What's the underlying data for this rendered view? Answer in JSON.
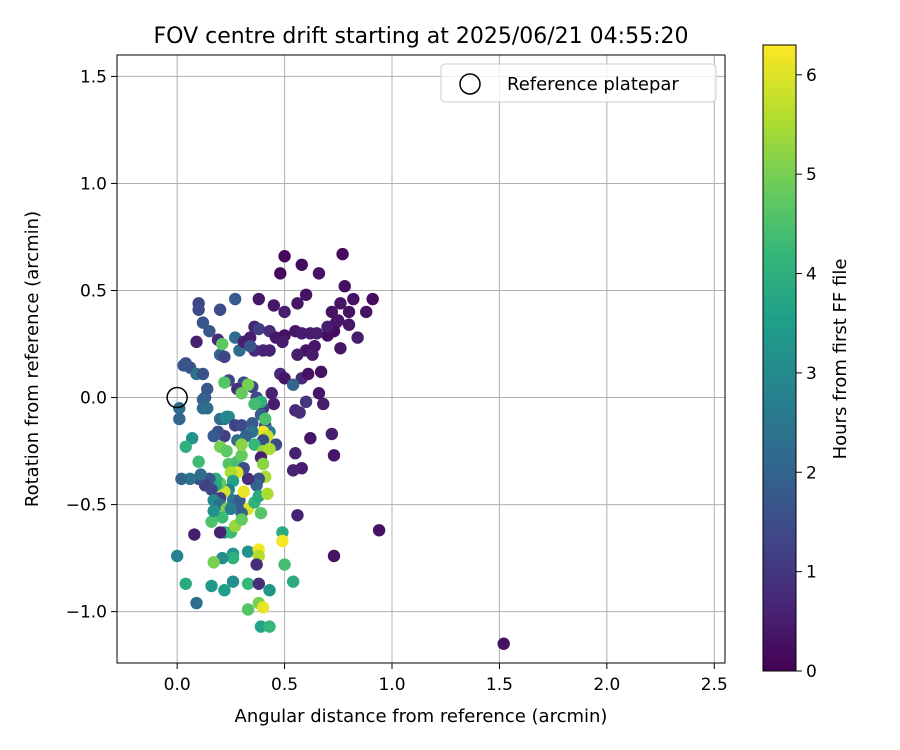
{
  "chart_data": {
    "type": "scatter",
    "title": "FOV centre drift starting at 2025/06/21 04:55:20",
    "xlabel": "Angular distance from reference (arcmin)",
    "ylabel": "Rotation from reference (arcmin)",
    "xlim": [
      -0.28,
      2.55
    ],
    "ylim": [
      -1.24,
      1.6
    ],
    "xticks": [
      0.0,
      0.5,
      1.0,
      1.5,
      2.0,
      2.5
    ],
    "xtick_labels": [
      "0.0",
      "0.5",
      "1.0",
      "1.5",
      "2.0",
      "2.5"
    ],
    "yticks": [
      -1.0,
      -0.5,
      0.0,
      0.5,
      1.0,
      1.5
    ],
    "ytick_labels": [
      "−1.0",
      "−0.5",
      "0.0",
      "0.5",
      "1.0",
      "1.5"
    ],
    "grid": true,
    "legend": {
      "position": "top-right",
      "label": "Reference platepar"
    },
    "reference_point": {
      "x": 0.0,
      "y": 0.0
    },
    "colorbar": {
      "label": "Hours from first FF file",
      "range": [
        0,
        6.3
      ],
      "colormap": "viridis",
      "ticks": [
        0,
        1,
        2,
        3,
        4,
        5,
        6
      ],
      "tick_labels": [
        "0",
        "1",
        "2",
        "3",
        "4",
        "5",
        "6"
      ]
    },
    "points": [
      [
        0.48,
        0.58,
        0.15
      ],
      [
        0.5,
        0.66,
        0.1
      ],
      [
        0.58,
        0.62,
        0.2
      ],
      [
        0.77,
        0.67,
        0.2
      ],
      [
        0.78,
        0.52,
        0.25
      ],
      [
        0.82,
        0.46,
        0.3
      ],
      [
        0.91,
        0.46,
        0.2
      ],
      [
        0.76,
        0.44,
        0.35
      ],
      [
        0.72,
        0.4,
        0.3
      ],
      [
        0.74,
        0.35,
        0.3
      ],
      [
        0.73,
        0.31,
        0.2
      ],
      [
        0.7,
        0.29,
        0.25
      ],
      [
        0.66,
        0.58,
        0.3
      ],
      [
        0.6,
        0.48,
        0.3
      ],
      [
        0.56,
        0.44,
        0.4
      ],
      [
        0.5,
        0.4,
        0.5
      ],
      [
        0.45,
        0.43,
        0.4
      ],
      [
        0.38,
        0.46,
        0.4
      ],
      [
        0.27,
        0.46,
        1.8
      ],
      [
        0.2,
        0.41,
        1.5
      ],
      [
        0.1,
        0.44,
        1.3
      ],
      [
        0.1,
        0.41,
        1.4
      ],
      [
        0.12,
        0.35,
        1.6
      ],
      [
        0.15,
        0.31,
        1.7
      ],
      [
        0.09,
        0.26,
        0.6
      ],
      [
        0.04,
        0.16,
        1.5
      ],
      [
        0.03,
        0.15,
        1.6
      ],
      [
        0.06,
        0.14,
        1.6
      ],
      [
        0.19,
        0.27,
        0.8
      ],
      [
        0.2,
        0.2,
        2.0
      ],
      [
        0.22,
        0.19,
        1.3
      ],
      [
        0.27,
        0.28,
        2.3
      ],
      [
        0.29,
        0.22,
        2.2
      ],
      [
        0.31,
        0.26,
        0.6
      ],
      [
        0.34,
        0.28,
        0.5
      ],
      [
        0.36,
        0.33,
        0.6
      ],
      [
        0.38,
        0.32,
        1.2
      ],
      [
        0.43,
        0.31,
        0.8
      ],
      [
        0.46,
        0.28,
        0.4
      ],
      [
        0.5,
        0.29,
        0.3
      ],
      [
        0.55,
        0.31,
        0.4
      ],
      [
        0.58,
        0.3,
        0.5
      ],
      [
        0.62,
        0.3,
        0.5
      ],
      [
        0.65,
        0.3,
        0.5
      ],
      [
        0.7,
        0.33,
        0.5
      ],
      [
        0.75,
        0.36,
        0.4
      ],
      [
        0.8,
        0.4,
        0.3
      ],
      [
        0.88,
        0.4,
        0.3
      ],
      [
        0.84,
        0.28,
        0.5
      ],
      [
        0.8,
        0.34,
        0.4
      ],
      [
        0.76,
        0.23,
        0.4
      ],
      [
        0.64,
        0.24,
        0.4
      ],
      [
        0.6,
        0.22,
        0.3
      ],
      [
        0.63,
        0.2,
        0.5
      ],
      [
        0.56,
        0.2,
        0.5
      ],
      [
        0.49,
        0.26,
        0.5
      ],
      [
        0.43,
        0.22,
        0.6
      ],
      [
        0.4,
        0.22,
        0.6
      ],
      [
        0.36,
        0.22,
        0.7
      ],
      [
        0.34,
        0.24,
        1.6
      ],
      [
        0.21,
        0.25,
        4.7
      ],
      [
        0.09,
        0.11,
        2.4
      ],
      [
        0.12,
        0.11,
        1.6
      ],
      [
        0.24,
        0.08,
        1.3
      ],
      [
        0.31,
        0.07,
        1.5
      ],
      [
        0.28,
        0.04,
        0.9
      ],
      [
        0.35,
        0.05,
        1.3
      ],
      [
        0.37,
        0.0,
        1.4
      ],
      [
        0.44,
        0.02,
        0.6
      ],
      [
        0.48,
        0.11,
        0.7
      ],
      [
        0.5,
        0.09,
        0.4
      ],
      [
        0.58,
        0.09,
        0.7
      ],
      [
        0.61,
        0.11,
        0.3
      ],
      [
        0.67,
        0.12,
        0.3
      ],
      [
        0.54,
        0.06,
        2.0
      ],
      [
        0.6,
        -0.02,
        1.0
      ],
      [
        0.66,
        0.02,
        0.4
      ],
      [
        0.68,
        -0.03,
        0.5
      ],
      [
        0.55,
        -0.06,
        0.7
      ],
      [
        0.57,
        -0.07,
        0.8
      ],
      [
        0.45,
        -0.03,
        0.5
      ],
      [
        0.4,
        -0.05,
        1.0
      ],
      [
        0.39,
        -0.02,
        4.0
      ],
      [
        0.36,
        -0.03,
        4.4
      ],
      [
        0.33,
        0.06,
        5.0
      ],
      [
        0.3,
        0.02,
        4.8
      ],
      [
        0.22,
        0.07,
        4.6
      ],
      [
        0.14,
        0.04,
        1.7
      ],
      [
        0.13,
        0.0,
        1.7
      ],
      [
        0.12,
        -0.01,
        2.0
      ],
      [
        0.12,
        -0.05,
        2.1
      ],
      [
        0.14,
        -0.05,
        2.3
      ],
      [
        0.01,
        -0.05,
        2.2
      ],
      [
        0.01,
        -0.1,
        2.0
      ],
      [
        0.2,
        -0.1,
        2.2
      ],
      [
        0.22,
        -0.1,
        2.4
      ],
      [
        0.23,
        -0.09,
        3.2
      ],
      [
        0.24,
        -0.09,
        2.9
      ],
      [
        0.27,
        -0.13,
        1.2
      ],
      [
        0.3,
        -0.13,
        1.4
      ],
      [
        0.35,
        -0.12,
        1.8
      ],
      [
        0.39,
        -0.08,
        1.9
      ],
      [
        0.41,
        -0.13,
        1.5
      ],
      [
        0.43,
        -0.16,
        2.6
      ],
      [
        0.41,
        -0.1,
        4.5
      ],
      [
        0.4,
        -0.16,
        6.2
      ],
      [
        0.42,
        -0.18,
        5.8
      ],
      [
        0.46,
        -0.22,
        1.4
      ],
      [
        0.4,
        -0.2,
        1.5
      ],
      [
        0.35,
        -0.16,
        2.4
      ],
      [
        0.32,
        -0.18,
        2.0
      ],
      [
        0.28,
        -0.2,
        2.3
      ],
      [
        0.22,
        -0.18,
        1.2
      ],
      [
        0.19,
        -0.16,
        1.5
      ],
      [
        0.17,
        -0.18,
        1.8
      ],
      [
        0.07,
        -0.19,
        3.2
      ],
      [
        0.04,
        -0.23,
        4.0
      ],
      [
        0.2,
        -0.23,
        5.0
      ],
      [
        0.23,
        -0.25,
        4.7
      ],
      [
        0.24,
        -0.31,
        4.6
      ],
      [
        0.28,
        -0.3,
        4.4
      ],
      [
        0.3,
        -0.27,
        4.8
      ],
      [
        0.3,
        -0.22,
        5.2
      ],
      [
        0.36,
        -0.22,
        4.2
      ],
      [
        0.4,
        -0.25,
        5.3
      ],
      [
        0.43,
        -0.24,
        5.5
      ],
      [
        0.39,
        -0.28,
        0.6
      ],
      [
        0.4,
        -0.31,
        5.2
      ],
      [
        0.41,
        -0.37,
        5.5
      ],
      [
        0.38,
        -0.38,
        1.6
      ],
      [
        0.37,
        -0.41,
        2.0
      ],
      [
        0.33,
        -0.38,
        0.8
      ],
      [
        0.31,
        -0.33,
        1.5
      ],
      [
        0.28,
        -0.35,
        6.0
      ],
      [
        0.25,
        -0.35,
        5.5
      ],
      [
        0.26,
        -0.39,
        3.6
      ],
      [
        0.24,
        -0.43,
        2.8
      ],
      [
        0.22,
        -0.44,
        5.9
      ],
      [
        0.2,
        -0.4,
        4.8
      ],
      [
        0.18,
        -0.38,
        4.0
      ],
      [
        0.18,
        -0.41,
        3.8
      ],
      [
        0.15,
        -0.38,
        1.7
      ],
      [
        0.13,
        -0.41,
        1.2
      ],
      [
        0.1,
        -0.38,
        1.5
      ],
      [
        0.11,
        -0.36,
        2.2
      ],
      [
        0.1,
        -0.3,
        4.3
      ],
      [
        0.06,
        -0.38,
        2.4
      ],
      [
        0.02,
        -0.38,
        2.0
      ],
      [
        0.16,
        -0.43,
        1.3
      ],
      [
        0.2,
        -0.47,
        1.2
      ],
      [
        0.17,
        -0.48,
        3.0
      ],
      [
        0.2,
        -0.5,
        2.3
      ],
      [
        0.23,
        -0.52,
        5.0
      ],
      [
        0.26,
        -0.48,
        2.5
      ],
      [
        0.29,
        -0.48,
        1.8
      ],
      [
        0.31,
        -0.44,
        6.1
      ],
      [
        0.33,
        -0.52,
        6.0
      ],
      [
        0.36,
        -0.49,
        4.1
      ],
      [
        0.38,
        -0.46,
        3.8
      ],
      [
        0.42,
        -0.45,
        5.5
      ],
      [
        0.39,
        -0.54,
        4.6
      ],
      [
        0.3,
        -0.54,
        2.1
      ],
      [
        0.28,
        -0.51,
        1.8
      ],
      [
        0.25,
        -0.52,
        2.7
      ],
      [
        0.21,
        -0.56,
        4.3
      ],
      [
        0.16,
        -0.58,
        4.5
      ],
      [
        0.22,
        -0.63,
        3.1
      ],
      [
        0.25,
        -0.63,
        4.3
      ],
      [
        0.27,
        -0.6,
        5.3
      ],
      [
        0.3,
        -0.57,
        4.8
      ],
      [
        0.2,
        -0.63,
        0.6
      ],
      [
        0.08,
        -0.64,
        0.5
      ],
      [
        0.17,
        -0.53,
        3.2
      ],
      [
        0.49,
        -0.63,
        3.9
      ],
      [
        0.49,
        -0.67,
        6.2
      ],
      [
        0.56,
        -0.55,
        0.6
      ],
      [
        0.33,
        -0.72,
        3.2
      ],
      [
        0.38,
        -0.71,
        6.2
      ],
      [
        0.38,
        -0.74,
        5.6
      ],
      [
        0.37,
        -0.78,
        0.8
      ],
      [
        0.26,
        -0.73,
        3.3
      ],
      [
        0.26,
        -0.75,
        4.0
      ],
      [
        0.21,
        -0.75,
        3.1
      ],
      [
        0.17,
        -0.77,
        5.0
      ],
      [
        0.0,
        -0.74,
        2.8
      ],
      [
        0.04,
        -0.87,
        3.8
      ],
      [
        0.16,
        -0.88,
        3.4
      ],
      [
        0.22,
        -0.9,
        3.5
      ],
      [
        0.26,
        -0.86,
        3.1
      ],
      [
        0.33,
        -0.87,
        4.2
      ],
      [
        0.38,
        -0.87,
        0.8
      ],
      [
        0.43,
        -0.9,
        3.3
      ],
      [
        0.5,
        -0.78,
        4.4
      ],
      [
        0.54,
        -0.86,
        3.9
      ],
      [
        0.33,
        -0.99,
        4.6
      ],
      [
        0.38,
        -0.96,
        5.0
      ],
      [
        0.4,
        -0.98,
        6.1
      ],
      [
        0.39,
        -1.07,
        3.6
      ],
      [
        0.43,
        -1.07,
        4.2
      ],
      [
        0.09,
        -0.96,
        2.3
      ],
      [
        0.73,
        -0.74,
        0.3
      ],
      [
        0.94,
        -0.62,
        0.3
      ],
      [
        0.73,
        -0.27,
        0.4
      ],
      [
        0.72,
        -0.17,
        0.5
      ],
      [
        0.62,
        -0.19,
        0.4
      ],
      [
        0.55,
        -0.26,
        0.6
      ],
      [
        0.58,
        -0.33,
        0.5
      ],
      [
        0.54,
        -0.34,
        0.6
      ],
      [
        1.52,
        -1.15,
        0.3
      ]
    ]
  }
}
